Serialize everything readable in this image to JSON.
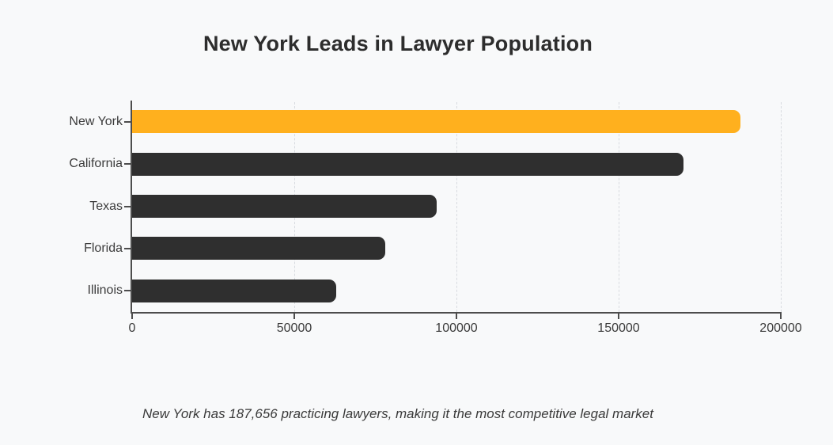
{
  "chart_data": {
    "type": "bar",
    "orientation": "horizontal",
    "title": "New York Leads in Lawyer Population",
    "annotation": "New York has 187,656 practicing lawyers, making it the most competitive legal market",
    "categories": [
      "New York",
      "California",
      "Texas",
      "Florida",
      "Illinois"
    ],
    "values": [
      187656,
      170000,
      94000,
      78000,
      63000
    ],
    "highlight_category": "New York",
    "xlabel": "",
    "ylabel": "",
    "xlim": [
      0,
      200000
    ],
    "x_ticks": [
      0,
      50000,
      100000,
      150000,
      200000
    ],
    "x_tick_labels": [
      "0",
      "50000",
      "100000",
      "150000",
      "200000"
    ],
    "grid": "vertical-dashed",
    "legend": "none",
    "colors": {
      "highlight_bar": "#ffb01e",
      "bar": "#2f2f2f",
      "background": "#f8f9fa",
      "axis": "#4d4d4d",
      "gridline": "#d8dbe0",
      "tick_text": "#3b3b3b",
      "title_text": "#2d2d2d",
      "caption_text": "#3a3a3a"
    }
  }
}
